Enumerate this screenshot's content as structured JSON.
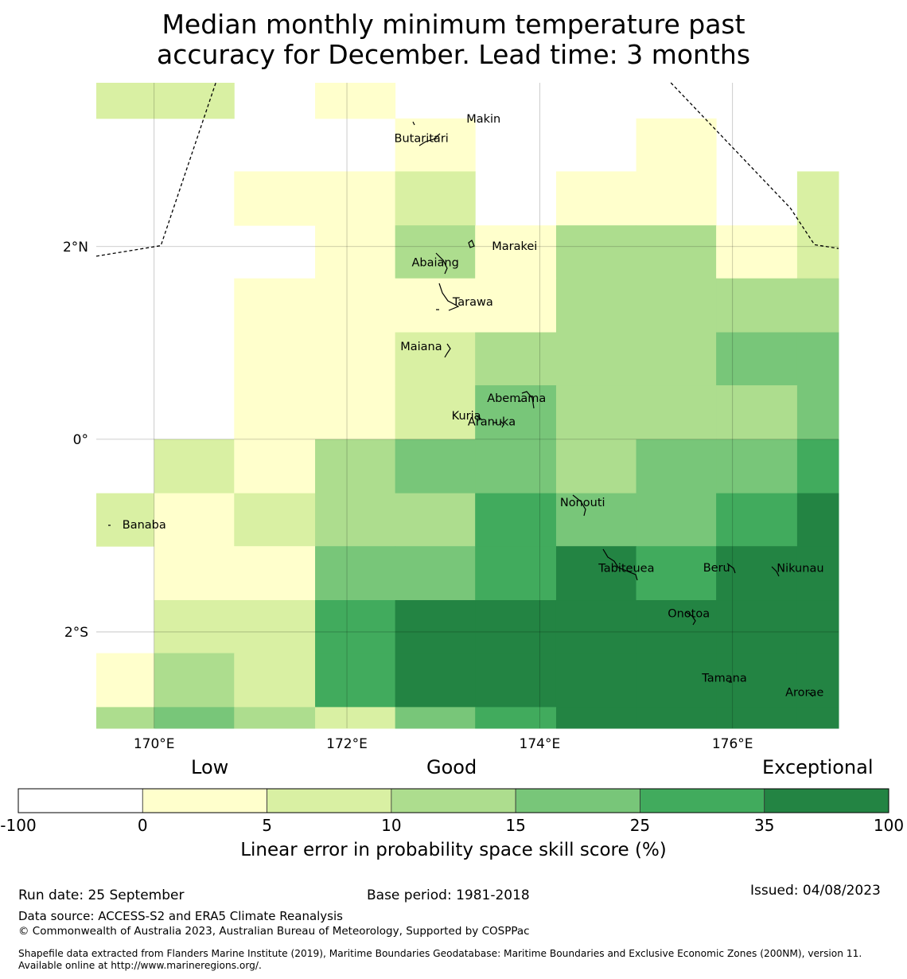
{
  "title_line1": "Median monthly minimum temperature past",
  "title_line2": "accuracy for December. Lead time: 3 months",
  "map": {
    "lon_range": [
      169.4,
      177.1
    ],
    "lat_range": [
      -3.0,
      3.7
    ],
    "grid_lon_ticks": [
      170,
      172,
      174,
      176
    ],
    "grid_lat_ticks": [
      2,
      0,
      -2
    ],
    "lon_tick_labels": [
      "170°E",
      "172°E",
      "174°E",
      "176°E"
    ],
    "lat_tick_labels": [
      "2°N",
      "0°",
      "2°S"
    ],
    "cell_columns_lon": [
      169.4,
      170.0,
      170.83,
      171.67,
      172.5,
      173.33,
      174.17,
      175.0,
      175.83,
      176.67,
      177.1
    ],
    "cell_rows_lat_top": [
      3.7,
      3.33,
      2.78,
      2.22,
      1.67,
      1.11,
      0.56,
      0.0,
      -0.56,
      -1.11,
      -1.67,
      -2.22,
      -2.78,
      -3.0
    ],
    "skill_category_grid": [
      [
        2,
        2,
        0,
        1,
        0,
        0,
        0,
        0,
        0,
        0
      ],
      [
        0,
        0,
        0,
        0,
        1,
        0,
        0,
        1,
        0,
        0
      ],
      [
        0,
        0,
        1,
        1,
        2,
        0,
        1,
        1,
        0,
        2
      ],
      [
        0,
        0,
        0,
        1,
        3,
        1,
        3,
        3,
        1,
        2
      ],
      [
        0,
        0,
        1,
        1,
        1,
        1,
        3,
        3,
        3,
        3
      ],
      [
        0,
        0,
        1,
        1,
        2,
        3,
        3,
        3,
        4,
        4
      ],
      [
        0,
        0,
        1,
        1,
        2,
        4,
        3,
        3,
        3,
        4
      ],
      [
        0,
        2,
        1,
        3,
        4,
        4,
        3,
        4,
        4,
        5
      ],
      [
        2,
        1,
        2,
        3,
        3,
        5,
        4,
        4,
        5,
        6
      ],
      [
        0,
        1,
        1,
        4,
        4,
        5,
        6,
        5,
        6,
        6
      ],
      [
        0,
        2,
        2,
        5,
        6,
        6,
        6,
        6,
        6,
        6
      ],
      [
        1,
        3,
        2,
        5,
        6,
        6,
        6,
        6,
        6,
        6
      ],
      [
        3,
        4,
        3,
        2,
        4,
        5,
        6,
        6,
        6,
        6
      ]
    ],
    "places": [
      {
        "name": "Makin",
        "lon": 173.0,
        "lat": 3.33
      },
      {
        "name": "Butaritari",
        "lon": 172.78,
        "lat": 3.07
      },
      {
        "name": "Marakei",
        "lon": 173.38,
        "lat": 2.0
      },
      {
        "name": "Abaiang",
        "lon": 172.92,
        "lat": 1.83
      },
      {
        "name": "Tarawa",
        "lon": 173.03,
        "lat": 1.43
      },
      {
        "name": "Maiana",
        "lon": 173.0,
        "lat": 0.95
      },
      {
        "name": "Abemama",
        "lon": 173.85,
        "lat": 0.41
      },
      {
        "name": "Kuria",
        "lon": 173.4,
        "lat": 0.23
      },
      {
        "name": "Aranuka",
        "lon": 173.6,
        "lat": 0.16
      },
      {
        "name": "Nonouti",
        "lon": 174.4,
        "lat": -0.66
      },
      {
        "name": "Banaba",
        "lon": 169.53,
        "lat": -0.87
      },
      {
        "name": "Tabiteuea",
        "lon": 174.8,
        "lat": -1.35
      },
      {
        "name": "Beru",
        "lon": 176.0,
        "lat": -1.33
      },
      {
        "name": "Nikunau",
        "lon": 176.45,
        "lat": -1.36
      },
      {
        "name": "Onotoa",
        "lon": 175.55,
        "lat": -1.8
      },
      {
        "name": "Tamana",
        "lon": 175.98,
        "lat": -2.5
      },
      {
        "name": "Arorae",
        "lon": 176.82,
        "lat": -2.65
      }
    ],
    "eez_boundaries": [
      [
        [
          169.4,
          1.9
        ],
        [
          170.07,
          2.01
        ],
        [
          170.64,
          3.7
        ]
      ],
      [
        [
          175.36,
          3.7
        ],
        [
          176.6,
          2.4
        ],
        [
          176.85,
          2.02
        ],
        [
          177.1,
          1.98
        ]
      ]
    ]
  },
  "legend": {
    "categories": [
      "Low",
      "Good",
      "Exceptional"
    ],
    "bins": [
      {
        "from": "-100",
        "to": "0",
        "color": "#ffffff"
      },
      {
        "from": "0",
        "to": "5",
        "color": "#ffffcc"
      },
      {
        "from": "5",
        "to": "10",
        "color": "#d9f0a3"
      },
      {
        "from": "10",
        "to": "15",
        "color": "#addd8e"
      },
      {
        "from": "15",
        "to": "25",
        "color": "#78c679"
      },
      {
        "from": "25",
        "to": "35",
        "color": "#41ab5d"
      },
      {
        "from": "35",
        "to": "100",
        "color": "#238443"
      }
    ],
    "tick_labels": [
      "-100",
      "0",
      "5",
      "10",
      "15",
      "25",
      "35",
      "100"
    ],
    "label": "Linear error in probability space skill score (%)"
  },
  "footer": {
    "run_date": "Run date: 25 September",
    "base_period": "Base period: 1981-2018",
    "issued": "Issued: 04/08/2023",
    "data_source": "Data source: ACCESS-S2 and ERA5 Climate Reanalysis",
    "copyright": "© Commonwealth of Australia 2023, Australian Bureau of Meteorology, Supported by COSPPac",
    "shapefile": "Shapefile data extracted from Flanders Marine Institute (2019), Maritime Boundaries Geodatabase: Maritime Boundaries and Exclusive Economic Zones (200NM), version 11. Available online at http://www.marineregions.org/."
  }
}
